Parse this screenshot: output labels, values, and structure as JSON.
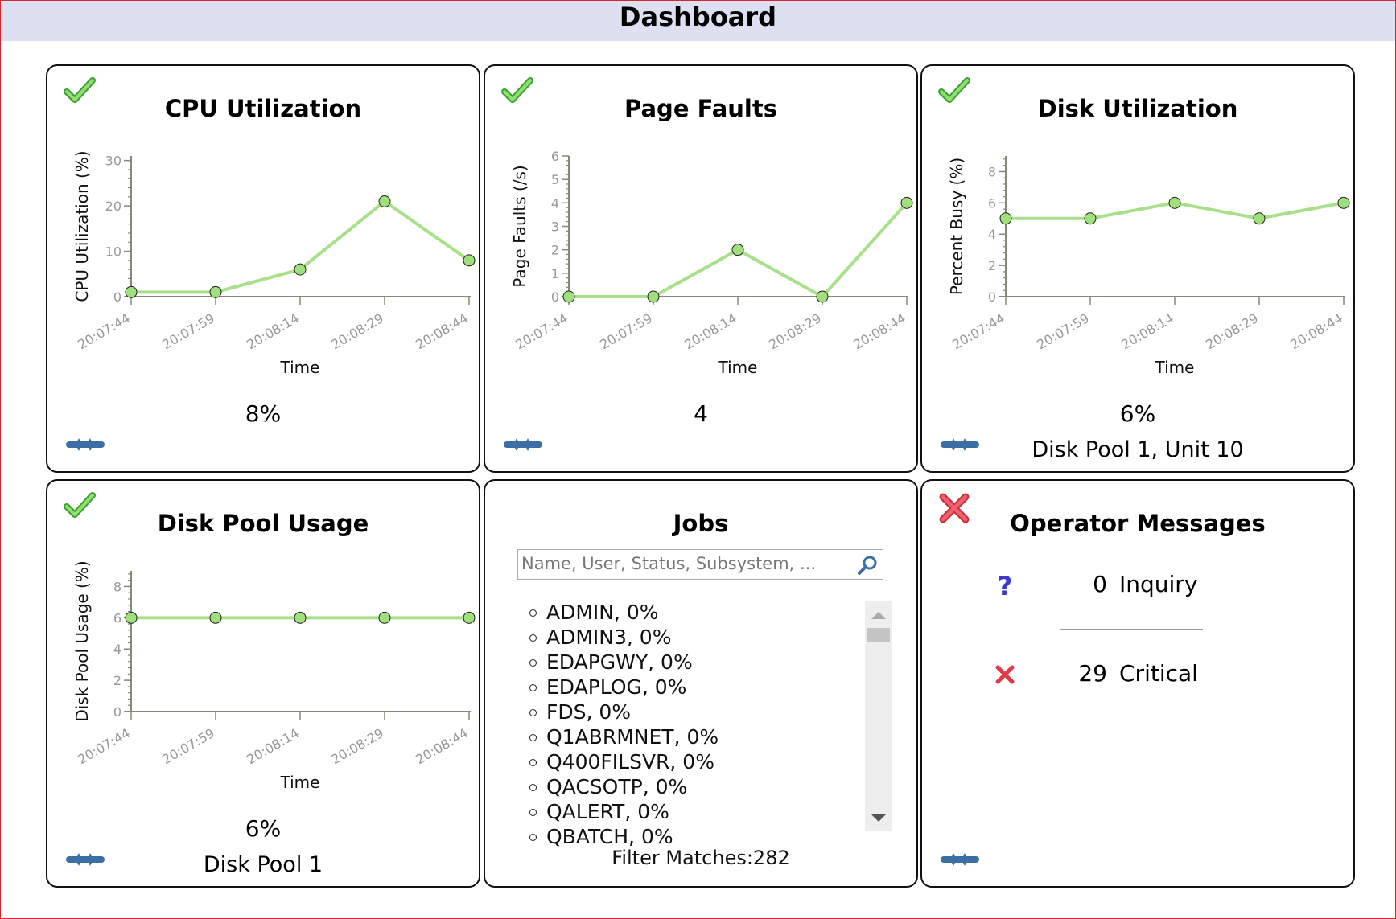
{
  "header": {
    "title": "Dashboard"
  },
  "colors": {
    "line": "#a8e08a",
    "point": "#a0e07c",
    "header_bg": "#dde0f0",
    "ok": "#4caf3c",
    "error": "#e0394a",
    "link": "#3a6ea5",
    "inquiry": "#3a3ad0"
  },
  "panels": {
    "cpu": {
      "title": "CPU Utilization",
      "status_icon": "check-icon",
      "value": "8%"
    },
    "page_faults": {
      "title": "Page Faults",
      "status_icon": "check-icon",
      "value": "4"
    },
    "disk_util": {
      "title": "Disk Utilization",
      "status_icon": "check-icon",
      "value": "6%",
      "subtitle": "Disk Pool 1, Unit 10"
    },
    "disk_pool": {
      "title": "Disk Pool Usage",
      "status_icon": "check-icon",
      "value": "6%",
      "subtitle": "Disk Pool 1"
    },
    "jobs": {
      "title": "Jobs",
      "search_placeholder": "Name, User, Status, Subsystem, ...",
      "items": [
        "ADMIN, 0%",
        "ADMIN3, 0%",
        "EDAPGWY, 0%",
        "EDAPLOG, 0%",
        "FDS, 0%",
        "Q1ABRMNET, 0%",
        "Q400FILSVR, 0%",
        "QACSOTP, 0%",
        "QALERT, 0%",
        "QBATCH, 0%"
      ],
      "filter_matches": "Filter Matches:282"
    },
    "operator_messages": {
      "title": "Operator Messages",
      "status_icon": "x-icon",
      "inquiry": {
        "count": "0",
        "label": "Inquiry"
      },
      "critical": {
        "count": "29",
        "label": "Critical"
      }
    }
  },
  "chart_data": [
    {
      "type": "line",
      "x": [
        "20:07:44",
        "20:07:59",
        "20:08:14",
        "20:08:29",
        "20:08:44"
      ],
      "values": [
        1,
        1,
        6,
        21,
        8
      ],
      "ylabel": "CPU Utilization (%)",
      "xlabel": "Time",
      "ylim": [
        0,
        31
      ],
      "yticks": [
        0,
        10,
        20,
        30
      ]
    },
    {
      "type": "line",
      "x": [
        "20:07:44",
        "20:07:59",
        "20:08:14",
        "20:08:29",
        "20:08:44"
      ],
      "values": [
        0,
        0,
        2,
        0,
        4
      ],
      "ylabel": "Page Faults (/s)",
      "xlabel": "Time",
      "ylim": [
        0,
        6
      ],
      "yticks": [
        0,
        1,
        2,
        3,
        4,
        5,
        6
      ]
    },
    {
      "type": "line",
      "x": [
        "20:07:44",
        "20:07:59",
        "20:08:14",
        "20:08:29",
        "20:08:44"
      ],
      "values": [
        5,
        5,
        6,
        5,
        6
      ],
      "ylabel": "Percent Busy (%)",
      "xlabel": "Time",
      "ylim": [
        0,
        9
      ],
      "yticks": [
        0,
        2,
        4,
        6,
        8
      ]
    },
    {
      "type": "line",
      "x": [
        "20:07:44",
        "20:07:59",
        "20:08:14",
        "20:08:29",
        "20:08:44"
      ],
      "values": [
        6,
        6,
        6,
        6,
        6
      ],
      "ylabel": "Disk Pool Usage (%)",
      "xlabel": "Time",
      "ylim": [
        0,
        9
      ],
      "yticks": [
        0,
        2,
        4,
        6,
        8
      ]
    }
  ]
}
